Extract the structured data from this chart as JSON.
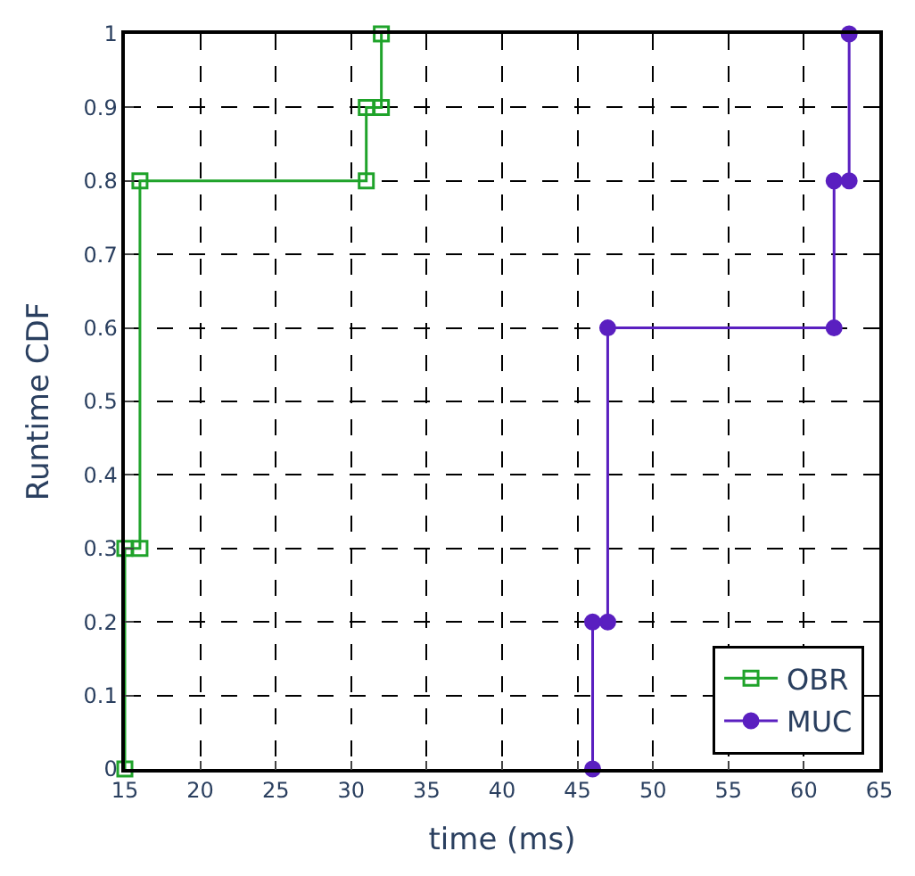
{
  "chart_data": {
    "type": "line",
    "xlabel": "time (ms)",
    "ylabel": "Runtime CDF",
    "xlim": [
      15,
      65
    ],
    "xticks": [
      15,
      20,
      25,
      30,
      35,
      40,
      45,
      50,
      55,
      60,
      65
    ],
    "ylim": [
      0,
      1
    ],
    "yticks": [
      0,
      0.1,
      0.2,
      0.3,
      0.4,
      0.5,
      0.6,
      0.7,
      0.8,
      0.9,
      1
    ],
    "grid": true,
    "legend": "bottom right",
    "line_style": "solid",
    "series": [
      {
        "name": "OBR",
        "color": "#1fa32a",
        "marker": "square",
        "x": [
          15,
          15,
          16,
          16,
          31,
          31,
          32,
          32
        ],
        "values": [
          0,
          0.3,
          0.3,
          0.8,
          0.8,
          0.9,
          0.9,
          1
        ]
      },
      {
        "name": "MUC",
        "color": "#5a1fc0",
        "marker": "circle",
        "x": [
          46,
          46,
          47,
          47,
          62,
          62,
          63,
          63
        ],
        "values": [
          0,
          0.2,
          0.2,
          0.6,
          0.6,
          0.8,
          0.8,
          1
        ]
      }
    ]
  }
}
